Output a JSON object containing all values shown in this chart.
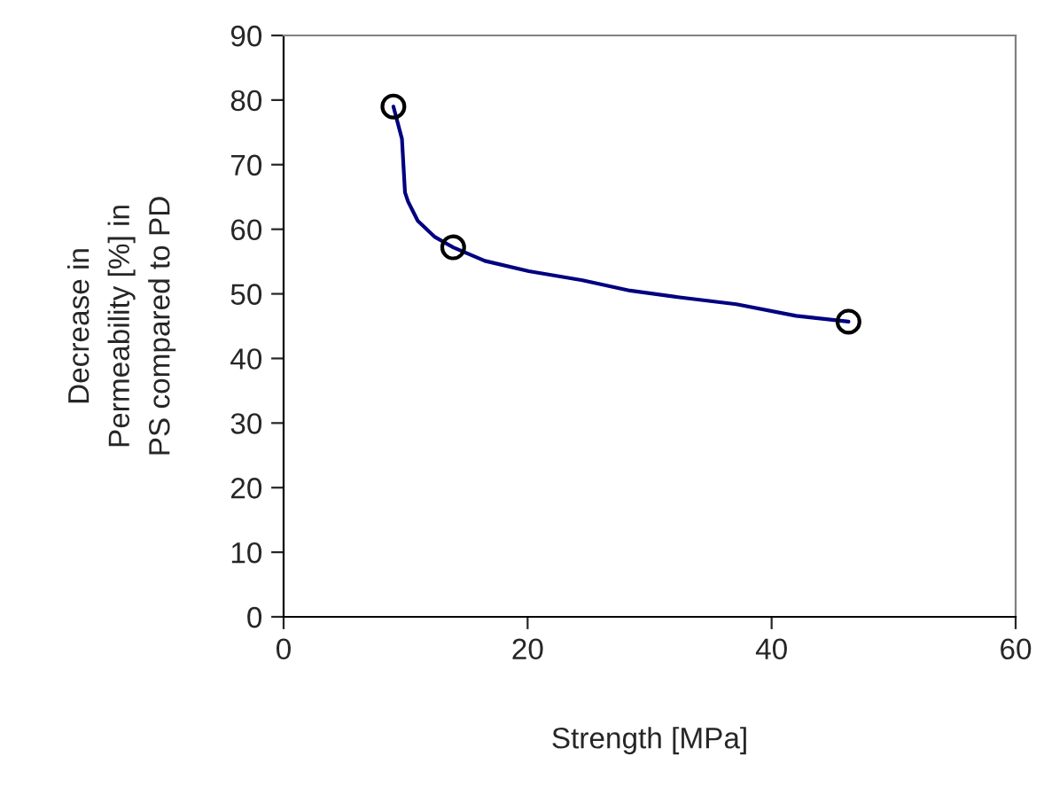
{
  "chart_data": {
    "type": "line",
    "xlabel": "Strength [MPa]",
    "ylabel": "Decrease in\nPermeability [%] in\nPS compared to PD",
    "xlim": [
      0,
      60
    ],
    "xticks": [
      0,
      20,
      40,
      60
    ],
    "ylim": [
      0,
      90
    ],
    "yticks": [
      0,
      10,
      20,
      30,
      40,
      50,
      60,
      70,
      80,
      90
    ],
    "grid": false,
    "legend": false,
    "series": [
      {
        "color": "#000080",
        "marker": "none",
        "line_style": "solid",
        "x": [
          9.0,
          9.7,
          9.95,
          10.2,
          11.0,
          12.4,
          13.9,
          16.5,
          20.1,
          24.5,
          28.4,
          32.3,
          37.1,
          42.0,
          46.3
        ],
        "values": [
          79.0,
          74.0,
          65.7,
          64.3,
          61.3,
          58.8,
          57.2,
          55.1,
          53.5,
          52.1,
          50.5,
          49.5,
          48.4,
          46.6,
          45.7
        ]
      },
      {
        "type": "scatter",
        "color": "#000000",
        "marker": "circle",
        "x": [
          9.0,
          13.9,
          46.3
        ],
        "values": [
          79.0,
          57.2,
          45.7
        ]
      }
    ]
  }
}
